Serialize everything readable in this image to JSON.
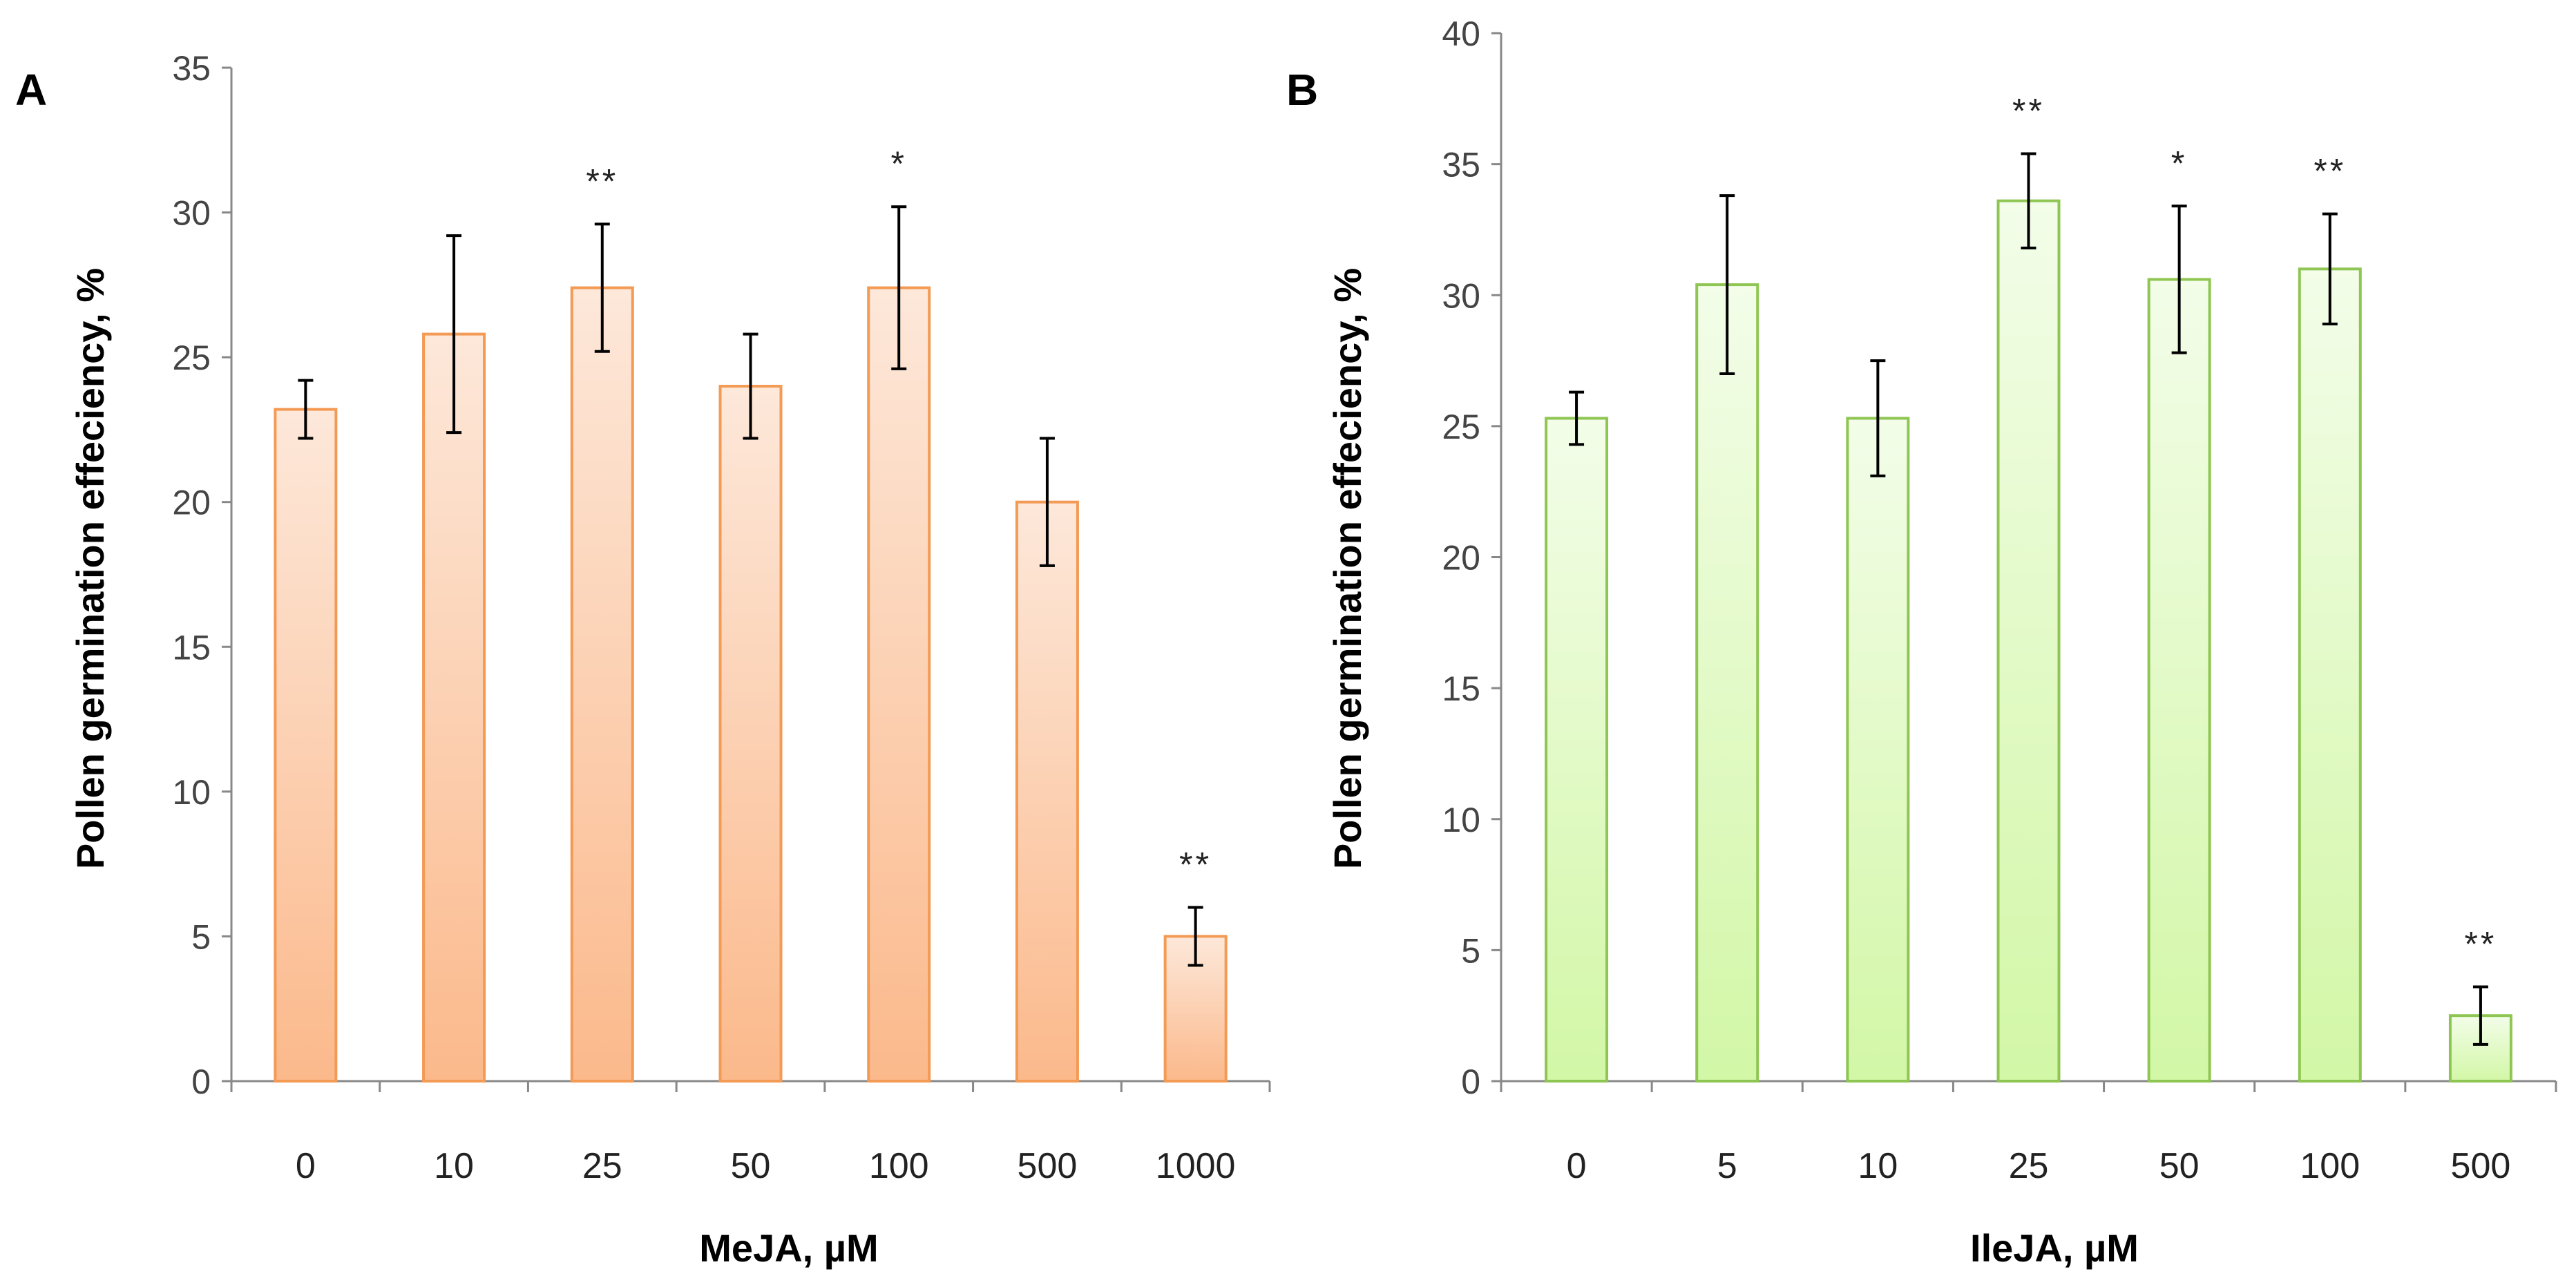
{
  "chart_data": [
    {
      "panel": "A",
      "type": "bar",
      "title": "",
      "xlabel": "MeJA, µM",
      "ylabel": "Pollen germination effeciency, %",
      "ylim": [
        0,
        35
      ],
      "yticks": [
        "0",
        "5",
        "10",
        "15",
        "20",
        "25",
        "30",
        "35"
      ],
      "categories": [
        "0",
        "10",
        "25",
        "50",
        "100",
        "500",
        "1000"
      ],
      "values": [
        23.2,
        25.8,
        27.4,
        24.0,
        27.4,
        20.0,
        5.0
      ],
      "errors": [
        1.0,
        3.4,
        2.2,
        1.8,
        2.8,
        2.2,
        1.0
      ],
      "annotations": [
        "",
        "",
        "**",
        "",
        "*",
        "",
        "**"
      ],
      "colors": {
        "top": "#fde8da",
        "bottom": "#fbb98b",
        "stroke": "#f39a55"
      },
      "grid": false
    },
    {
      "panel": "B",
      "type": "bar",
      "title": "",
      "xlabel": "IleJA, µM",
      "ylabel": "Pollen germination effeciency, %",
      "ylim": [
        0,
        40
      ],
      "yticks": [
        "0",
        "5",
        "10",
        "15",
        "20",
        "25",
        "30",
        "35",
        "40"
      ],
      "categories": [
        "0",
        "5",
        "10",
        "25",
        "50",
        "100",
        "500"
      ],
      "values": [
        25.3,
        30.4,
        25.3,
        33.6,
        30.6,
        31.0,
        2.5
      ],
      "errors": [
        1.0,
        3.4,
        2.2,
        1.8,
        2.8,
        2.1,
        1.1
      ],
      "annotations": [
        "",
        "",
        "",
        "**",
        "*",
        "**",
        "**"
      ],
      "colors": {
        "top": "#f3fde9",
        "bottom": "#d2f7a6",
        "stroke": "#8fc653"
      },
      "grid": false
    }
  ]
}
